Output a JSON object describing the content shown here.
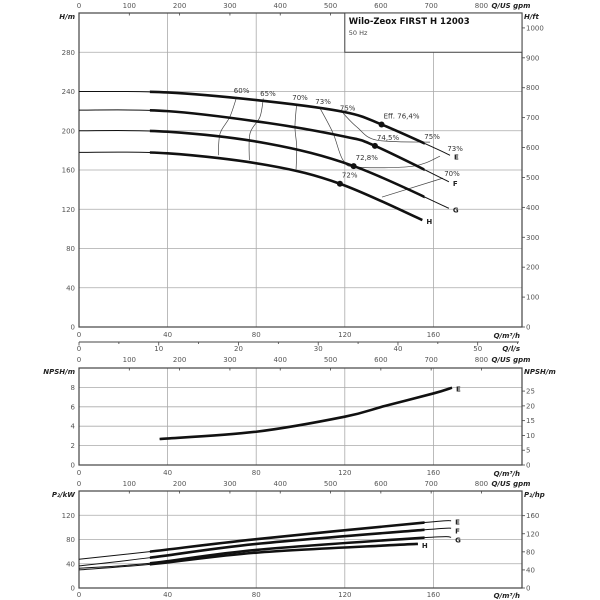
{
  "chart_data": [
    {
      "type": "line",
      "title": "Wilo-Zeox FIRST H 12003",
      "subtitle": "50 Hz",
      "ylabel": "H/m",
      "ylabel_right": "H/ft",
      "xlabel": "Q/m³/h",
      "x_top_label": "Q/US gpm",
      "x_ls_label": "Q/l/s",
      "xlim": [
        0,
        200
      ],
      "ylim": [
        0,
        320
      ],
      "grid": true,
      "x_ticks": [
        0,
        40,
        80,
        120,
        160
      ],
      "y_ticks": [
        0,
        40,
        80,
        120,
        160,
        200,
        240,
        280
      ],
      "y_right_ticks": [
        0,
        100,
        200,
        300,
        400,
        500,
        600,
        700,
        800,
        900,
        1000
      ],
      "x_top_ticks": [
        0,
        100,
        200,
        300,
        400,
        500,
        600,
        700,
        800
      ],
      "x_ls_ticks": [
        0,
        10,
        20,
        30,
        40,
        50
      ],
      "series": [
        {
          "name": "E",
          "points": [
            [
              0,
              240
            ],
            [
              40,
              239
            ],
            [
              85,
              230
            ],
            [
              120,
              219
            ],
            [
              136.6,
              206.4
            ],
            [
              160,
              183
            ],
            [
              167.5,
              175
            ]
          ]
        },
        {
          "name": "F",
          "points": [
            [
              0,
              221
            ],
            [
              40,
              220
            ],
            [
              85,
              208
            ],
            [
              120,
              194
            ],
            [
              133.6,
              184.6
            ],
            [
              167,
              148
            ]
          ]
        },
        {
          "name": "G",
          "points": [
            [
              0,
              200
            ],
            [
              40,
              199
            ],
            [
              85,
              187
            ],
            [
              124,
              164
            ],
            [
              167,
              121
            ]
          ]
        },
        {
          "name": "H",
          "points": [
            [
              0,
              178
            ],
            [
              40,
              177
            ],
            [
              85,
              165
            ],
            [
              117.8,
              146
            ],
            [
              155,
              109
            ]
          ]
        }
      ],
      "operating_points": [
        {
          "series": "E",
          "q": 136.6,
          "h": 206.4,
          "label": "Eff. 76,4%"
        },
        {
          "series": "F",
          "q": 133.6,
          "h": 184.6,
          "label": "74,5%"
        },
        {
          "series": "G",
          "q": 124,
          "h": 164,
          "label": "72,8%"
        },
        {
          "series": "H",
          "q": 117.8,
          "h": 146,
          "label": "72%"
        }
      ],
      "efficiency_contours": [
        {
          "label": "60%",
          "points": [
            [
              71.2,
              234.5
            ],
            [
              68.1,
              214.1
            ],
            [
              63.7,
              197.2
            ],
            [
              62.9,
              175.1
            ]
          ],
          "label_at": [
            [
              73.4,
              240.3
            ]
          ]
        },
        {
          "label": "65%",
          "points": [
            [
              83.2,
              232.9
            ],
            [
              81.7,
              214.1
            ],
            [
              77.2,
              197.2
            ],
            [
              76.9,
              170.1
            ]
          ],
          "label_at": [
            [
              85.3,
              237.3
            ]
          ]
        },
        {
          "label": "70%",
          "points": [
            [
              98.3,
              227.8
            ],
            [
              97.5,
              204
            ],
            [
              98.3,
              183.6
            ],
            [
              98,
              160.6
            ]
          ],
          "label_at": [
            [
              99.8,
              233.2
            ]
          ]
        },
        {
          "label": "73%",
          "points": [
            [
              108.8,
              223
            ],
            [
              114.7,
              197.6
            ],
            [
              119.2,
              170.1
            ],
            [
              125.5,
              162.9
            ],
            [
              150.8,
              163.9
            ],
            [
              163,
              174.1
            ]
          ],
          "label_at": [
            [
              110.2,
              229.1
            ],
            [
              169.8,
              181.3
            ]
          ]
        },
        {
          "label": "75%",
          "points": [
            [
              119.2,
              217.9
            ],
            [
              125.5,
              203.7
            ],
            [
              134.5,
              190.4
            ],
            [
              158.5,
              188.4
            ]
          ],
          "label_at": [
            [
              121.3,
              222.7
            ],
            [
              159.4,
              193.5
            ]
          ]
        },
        {
          "label": "70%",
          "points": [
            [
              136.8,
              132.4
            ],
            [
              164.3,
              151.7
            ]
          ],
          "label_at": [
            [
              168.4,
              155.8
            ]
          ]
        }
      ]
    },
    {
      "type": "line",
      "ylabel": "NPSH/m",
      "ylabel_right": "NPSH/m",
      "xlabel": "Q/m³/h",
      "x_top_label": "Q/US gpm",
      "xlim": [
        0,
        200
      ],
      "ylim": [
        0,
        10
      ],
      "grid": true,
      "x_ticks": [
        0,
        40,
        80,
        120,
        160
      ],
      "y_ticks": [
        0,
        2,
        4,
        6,
        8
      ],
      "y_right_ticks": [
        0,
        5,
        10,
        15,
        20,
        25
      ],
      "x_top_ticks": [
        0,
        100,
        200,
        300,
        400,
        500,
        600,
        700,
        800
      ],
      "series": [
        {
          "name": "E",
          "points": [
            [
              36.4,
              2.68
            ],
            [
              80,
              3.43
            ],
            [
              120,
              4.98
            ],
            [
              138,
              6.08
            ],
            [
              160.2,
              7.39
            ],
            [
              168.4,
              7.97
            ]
          ]
        }
      ]
    },
    {
      "type": "line",
      "ylabel": "P₂/kW",
      "ylabel_right": "P₂/hp",
      "xlabel": "Q/m³/h",
      "x_top_label": "Q/US gpm",
      "xlim": [
        0,
        200
      ],
      "ylim": [
        0,
        160
      ],
      "grid": true,
      "x_ticks": [
        0,
        40,
        80,
        120,
        160
      ],
      "y_ticks": [
        0,
        40,
        80,
        120
      ],
      "y_right_ticks": [
        0,
        40,
        80,
        120,
        160
      ],
      "x_top_ticks": [
        0,
        100,
        200,
        300,
        400,
        500,
        600,
        700,
        800
      ],
      "series": [
        {
          "name": "E",
          "points": [
            [
              0,
              47.4
            ],
            [
              32,
              60
            ],
            [
              80,
              80.5
            ],
            [
              156,
              108
            ],
            [
              168,
              111
            ]
          ]
        },
        {
          "name": "F",
          "points": [
            [
              0,
              36.4
            ],
            [
              32,
              50
            ],
            [
              80,
              72.7
            ],
            [
              156,
              96
            ],
            [
              168,
              98.7
            ]
          ]
        },
        {
          "name": "G",
          "points": [
            [
              0,
              32.5
            ],
            [
              32,
              40.8
            ],
            [
              80,
              62.8
            ],
            [
              156,
              83
            ],
            [
              168,
              83.7
            ]
          ]
        },
        {
          "name": "H",
          "points": [
            [
              0,
              29.8
            ],
            [
              32,
              39
            ],
            [
              80,
              58.3
            ],
            [
              143,
              71
            ],
            [
              153,
              72.7
            ]
          ]
        }
      ]
    }
  ]
}
